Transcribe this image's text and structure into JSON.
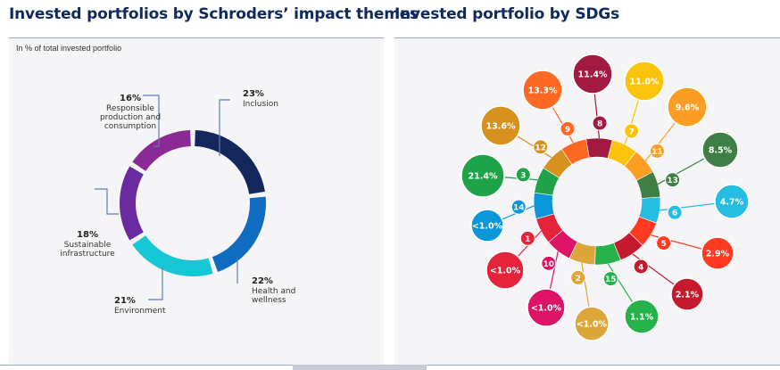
{
  "left_panel": {
    "title": "Invested portfolios by Schroders’ impact themes",
    "subtitle": "In % of total invested portfolio"
  },
  "right_panel": {
    "title": "Invested portfolio by SDGs"
  },
  "chart_data": [
    {
      "type": "pie",
      "variant": "donut",
      "title": "Invested portfolios by Schroders’ impact themes",
      "subtitle": "In % of total invested portfolio",
      "slices": [
        {
          "label": [
            "Inclusion"
          ],
          "value": 23,
          "value_label": "23%",
          "color": "#13275c"
        },
        {
          "label": [
            "Health and",
            "wellness"
          ],
          "value": 22,
          "value_label": "22%",
          "color": "#0f6cc0"
        },
        {
          "label": [
            "Environment"
          ],
          "value": 21,
          "value_label": "21%",
          "color": "#17c7d6"
        },
        {
          "label": [
            "Sustainable",
            "infrastructure"
          ],
          "value": 18,
          "value_label": "18%",
          "color": "#6a2aa0"
        },
        {
          "label": [
            "Responsible",
            "production and",
            "consumption"
          ],
          "value": 16,
          "value_label": "16%",
          "color": "#8b2a96"
        }
      ]
    },
    {
      "type": "pie",
      "variant": "donut",
      "title": "Invested portfolio by SDGs",
      "slices": [
        {
          "sdg": "8",
          "value_label": "11.4%",
          "color": "#a21942"
        },
        {
          "sdg": "7",
          "value_label": "11.0%",
          "color": "#fcc30b"
        },
        {
          "sdg": "11",
          "value_label": "9.6%",
          "color": "#fd9d24"
        },
        {
          "sdg": "13",
          "value_label": "8.5%",
          "color": "#3f7e44"
        },
        {
          "sdg": "6",
          "value_label": "4.7%",
          "color": "#26bde2"
        },
        {
          "sdg": "5",
          "value_label": "2.9%",
          "color": "#ff3a21"
        },
        {
          "sdg": "4",
          "value_label": "2.1%",
          "color": "#c5192d"
        },
        {
          "sdg": "15",
          "value_label": "1.1%",
          "color": "#26b24b"
        },
        {
          "sdg": "2",
          "value_label": "<1.0%",
          "color": "#dda63a"
        },
        {
          "sdg": "10",
          "value_label": "<1.0%",
          "color": "#dd1367"
        },
        {
          "sdg": "1",
          "value_label": "<1.0%",
          "color": "#e5243b"
        },
        {
          "sdg": "14",
          "value_label": "<1.0%",
          "color": "#0a97d9"
        },
        {
          "sdg": "3",
          "value_label": "21.4%",
          "color": "#1fa34a"
        },
        {
          "sdg": "12",
          "value_label": "13.6%",
          "color": "#d6911f"
        },
        {
          "sdg": "9",
          "value_label": "13.3%",
          "color": "#fd6925"
        }
      ]
    }
  ]
}
